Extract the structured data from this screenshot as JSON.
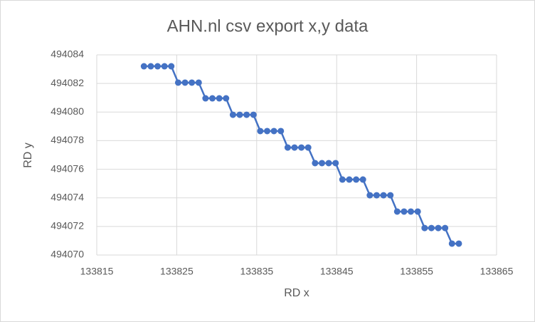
{
  "chart_data": {
    "type": "scatter",
    "title": "AHN.nl csv export x,y data",
    "x_label": "RD x",
    "y_label": "RD y",
    "series": [
      {
        "name": "RD y",
        "color": "#4472c4",
        "x": [
          133820.9,
          133821.76,
          133822.61,
          133823.47,
          133824.32,
          133825.18,
          133826.04,
          133826.89,
          133827.75,
          133828.6,
          133829.46,
          133830.32,
          133831.17,
          133832.03,
          133832.88,
          133833.74,
          133834.6,
          133835.45,
          133836.31,
          133837.16,
          133838.02,
          133838.88,
          133839.73,
          133840.59,
          133841.44,
          133842.3,
          133843.16,
          133844.01,
          133844.87,
          133845.72,
          133846.58,
          133847.44,
          133848.29,
          133849.15,
          133850.0,
          133850.86,
          133851.72,
          133852.57,
          133853.43,
          133854.28,
          133855.14,
          133856.0,
          133856.85,
          133857.71,
          133858.56,
          133859.42,
          133860.28
        ],
        "values": [
          494083.2,
          494083.2,
          494083.2,
          494083.2,
          494083.2,
          494082.06,
          494082.06,
          494082.06,
          494082.06,
          494080.96,
          494080.96,
          494080.96,
          494080.96,
          494079.81,
          494079.81,
          494079.81,
          494079.81,
          494078.67,
          494078.67,
          494078.67,
          494078.67,
          494077.52,
          494077.52,
          494077.52,
          494077.52,
          494076.43,
          494076.43,
          494076.43,
          494076.43,
          494075.28,
          494075.28,
          494075.28,
          494075.28,
          494074.18,
          494074.18,
          494074.18,
          494074.18,
          494073.04,
          494073.04,
          494073.04,
          494073.04,
          494071.89,
          494071.89,
          494071.89,
          494071.89,
          494070.8,
          494070.8
        ]
      }
    ],
    "xlim": [
      133815,
      133865
    ],
    "xticks": [
      133815,
      133825,
      133835,
      133845,
      133855,
      133865
    ],
    "ylim": [
      494070,
      494084
    ],
    "yticks": [
      494070,
      494072,
      494074,
      494076,
      494078,
      494080,
      494082,
      494084
    ],
    "grid": true,
    "lines": true,
    "markers": true
  }
}
